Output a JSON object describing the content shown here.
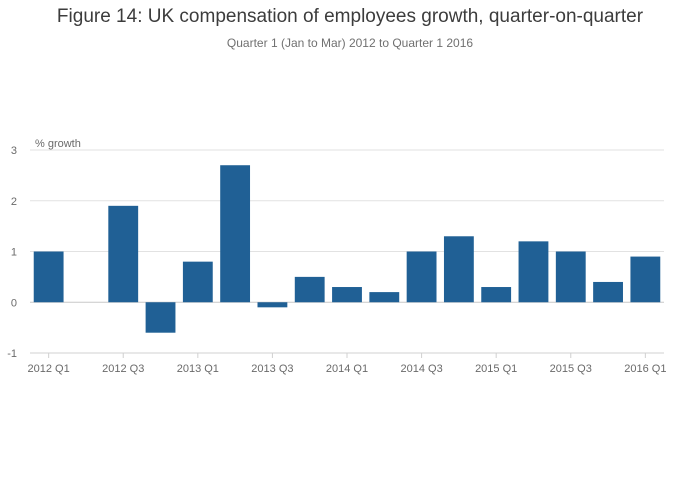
{
  "chart_data": {
    "type": "bar",
    "title": "Figure 14: UK compensation of employees growth, quarter-on-quarter",
    "subtitle": "Quarter 1 (Jan to Mar) 2012 to Quarter 1 2016",
    "ylabel": "% growth",
    "xlabel": "",
    "ylim": [
      -1,
      3
    ],
    "yticks": [
      -1,
      0,
      1,
      2,
      3
    ],
    "grid": true,
    "bar_color": "#206095",
    "categories": [
      "2012 Q1",
      "2012 Q2",
      "2012 Q3",
      "2012 Q4",
      "2013 Q1",
      "2013 Q2",
      "2013 Q3",
      "2013 Q4",
      "2014 Q1",
      "2014 Q2",
      "2014 Q3",
      "2014 Q4",
      "2015 Q1",
      "2015 Q2",
      "2015 Q3",
      "2015 Q4",
      "2016 Q1"
    ],
    "xtick_labels": [
      "2012 Q1",
      "2012 Q3",
      "2013 Q1",
      "2013 Q3",
      "2014 Q1",
      "2014 Q3",
      "2015 Q1",
      "2015 Q3",
      "2016 Q1"
    ],
    "values": [
      1.0,
      0.0,
      1.9,
      -0.6,
      0.8,
      2.7,
      -0.1,
      0.5,
      0.3,
      0.2,
      1.0,
      1.3,
      0.3,
      1.2,
      1.0,
      0.4,
      0.9
    ]
  }
}
